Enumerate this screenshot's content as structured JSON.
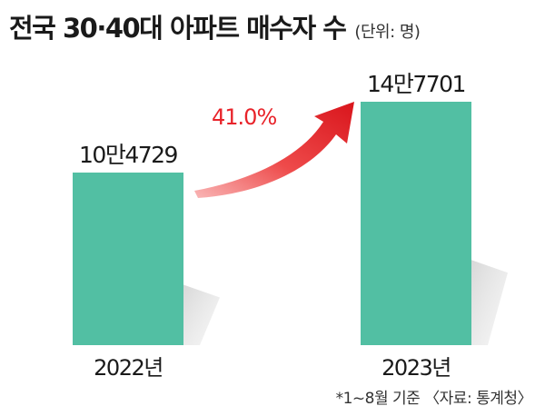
{
  "title": "전국 30·40대 아파트 매수자 수",
  "unit_label": "(단위: 명)",
  "footnote": "*1~8월 기준 〈자료: 통계청〉",
  "colors": {
    "bar": "#52bfa3",
    "arrow": "#e8232a",
    "shadow": "#c8c8c8"
  },
  "chart_data": {
    "type": "bar",
    "categories": [
      "2022년",
      "2023년"
    ],
    "values": [
      104729,
      147701
    ],
    "value_labels": [
      "10만4729",
      "14만7701"
    ],
    "growth_label": "41.0%"
  }
}
